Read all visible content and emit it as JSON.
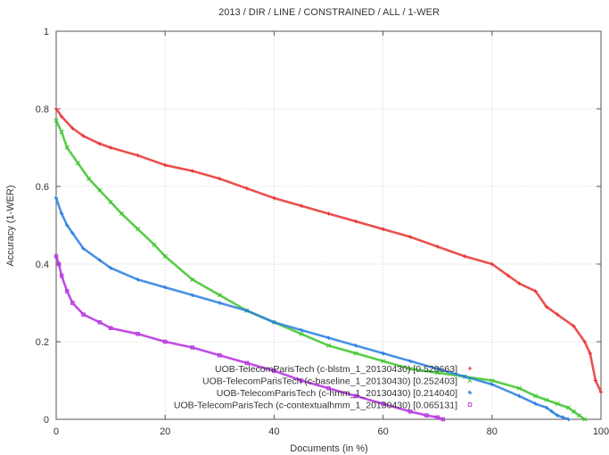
{
  "chart_data": {
    "type": "scatter",
    "title": "2013 / DIR / LINE / CONSTRAINED / ALL / 1-WER",
    "xlabel": "Documents (in %)",
    "ylabel": "Accuracy (1-WER)",
    "xlim": [
      0,
      100
    ],
    "ylim": [
      0,
      1
    ],
    "xticks": [
      0,
      20,
      40,
      60,
      80,
      100
    ],
    "yticks": [
      0,
      0.2,
      0.4,
      0.6,
      0.8,
      1
    ],
    "ytick_labels": [
      "0",
      "0.2",
      "0.4",
      "0.6",
      "0.8",
      "1"
    ],
    "grid": true,
    "legend_position": "bottom-right",
    "series": [
      {
        "name": "UOB-TelecomParisTech (c-blstm_1_20130430) [0.520663]",
        "color": "#e8312e",
        "marker": "plus",
        "x": [
          0,
          1,
          3,
          5,
          8,
          10,
          15,
          20,
          25,
          30,
          35,
          40,
          45,
          50,
          55,
          60,
          65,
          70,
          75,
          80,
          83,
          85,
          88,
          90,
          92,
          95,
          97,
          98,
          99,
          100
        ],
        "y": [
          0.8,
          0.78,
          0.75,
          0.73,
          0.71,
          0.7,
          0.68,
          0.655,
          0.64,
          0.62,
          0.595,
          0.57,
          0.55,
          0.53,
          0.51,
          0.49,
          0.47,
          0.445,
          0.42,
          0.4,
          0.37,
          0.35,
          0.33,
          0.29,
          0.27,
          0.24,
          0.2,
          0.17,
          0.1,
          0.07
        ]
      },
      {
        "name": "UOB-TelecomParisTech (c-baseline_1_20130430) [0.252403]",
        "color": "#3cc42b",
        "marker": "x",
        "x": [
          0,
          1,
          2,
          4,
          6,
          8,
          10,
          12,
          15,
          18,
          20,
          25,
          30,
          35,
          40,
          45,
          50,
          55,
          60,
          65,
          70,
          75,
          80,
          85,
          88,
          90,
          92,
          94,
          95,
          96,
          97
        ],
        "y": [
          0.77,
          0.74,
          0.7,
          0.66,
          0.62,
          0.59,
          0.56,
          0.53,
          0.49,
          0.45,
          0.42,
          0.36,
          0.32,
          0.28,
          0.25,
          0.22,
          0.19,
          0.17,
          0.15,
          0.13,
          0.12,
          0.11,
          0.1,
          0.08,
          0.06,
          0.05,
          0.04,
          0.03,
          0.02,
          0.01,
          0.0
        ]
      },
      {
        "name": "UOB-TelecomParisTech (c-hmm_1_20130430) [0.214040]",
        "color": "#2a7fe0",
        "marker": "asterisk",
        "x": [
          0,
          1,
          2,
          3,
          5,
          8,
          10,
          15,
          20,
          25,
          30,
          35,
          40,
          45,
          50,
          55,
          60,
          65,
          70,
          75,
          80,
          85,
          88,
          90,
          91,
          92,
          93,
          94
        ],
        "y": [
          0.57,
          0.53,
          0.5,
          0.48,
          0.44,
          0.41,
          0.39,
          0.36,
          0.34,
          0.32,
          0.3,
          0.28,
          0.25,
          0.23,
          0.21,
          0.19,
          0.17,
          0.15,
          0.13,
          0.11,
          0.09,
          0.06,
          0.04,
          0.03,
          0.02,
          0.01,
          0.005,
          0.0
        ]
      },
      {
        "name": "UOB-TelecomParisTech (c-contextualhmm_1_20130430) [0.065131]",
        "color": "#b52ee0",
        "marker": "square",
        "x": [
          0,
          0.5,
          1,
          2,
          3,
          5,
          8,
          10,
          15,
          20,
          25,
          30,
          35,
          40,
          45,
          50,
          55,
          60,
          65,
          68,
          70,
          71
        ],
        "y": [
          0.42,
          0.4,
          0.37,
          0.33,
          0.3,
          0.27,
          0.25,
          0.235,
          0.22,
          0.2,
          0.185,
          0.165,
          0.145,
          0.125,
          0.1,
          0.08,
          0.06,
          0.04,
          0.02,
          0.01,
          0.005,
          0.0
        ]
      }
    ]
  }
}
